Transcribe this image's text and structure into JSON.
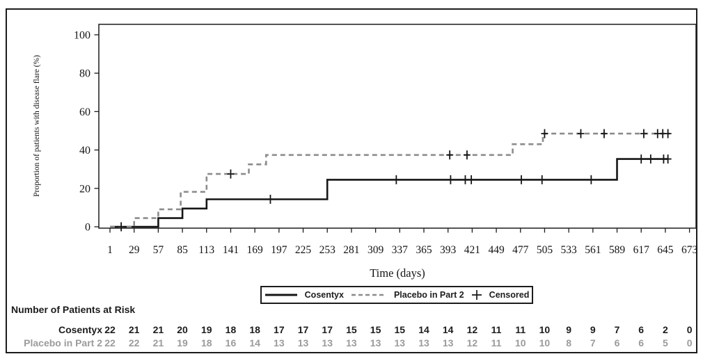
{
  "chart_data": {
    "type": "line",
    "subtype": "kaplan-meier-step",
    "title": "",
    "xlabel": "Time (days)",
    "ylabel": "Proportion of patients with disease flare (%)",
    "xlim": [
      1,
      673
    ],
    "ylim": [
      0,
      100
    ],
    "grid": false,
    "x_ticks": [
      1,
      29,
      57,
      85,
      113,
      141,
      169,
      197,
      225,
      253,
      281,
      309,
      337,
      365,
      393,
      421,
      449,
      477,
      505,
      533,
      561,
      589,
      617,
      645,
      673
    ],
    "y_ticks": [
      0,
      20,
      40,
      60,
      80,
      100
    ],
    "legend_position": "bottom-center",
    "censored_label": "Censored",
    "censored_marker": "+",
    "series": [
      {
        "name": "Cosentyx",
        "style": "solid",
        "color": "#161616",
        "steps": [
          [
            1,
            0
          ],
          [
            57,
            0
          ],
          [
            57,
            4.5
          ],
          [
            85,
            4.5
          ],
          [
            85,
            9.5
          ],
          [
            113,
            9.5
          ],
          [
            113,
            14.3
          ],
          [
            253,
            14.3
          ],
          [
            253,
            24.5
          ],
          [
            589,
            24.5
          ],
          [
            589,
            35.3
          ],
          [
            648,
            35.3
          ]
        ],
        "censored": [
          [
            14,
            0
          ],
          [
            187,
            14.3
          ],
          [
            333,
            24.5
          ],
          [
            396,
            24.5
          ],
          [
            413,
            24.5
          ],
          [
            420,
            24.5
          ],
          [
            478,
            24.5
          ],
          [
            502,
            24.5
          ],
          [
            559,
            24.5
          ],
          [
            617,
            35.3
          ],
          [
            628,
            35.3
          ],
          [
            643,
            35.3
          ],
          [
            648,
            35.3
          ]
        ]
      },
      {
        "name": "Placebo in Part 2",
        "style": "dashed",
        "color": "#8c8c8c",
        "steps": [
          [
            1,
            0
          ],
          [
            29,
            0
          ],
          [
            29,
            4.5
          ],
          [
            57,
            4.5
          ],
          [
            57,
            9.1
          ],
          [
            83,
            9.1
          ],
          [
            83,
            18.2
          ],
          [
            113,
            18.2
          ],
          [
            113,
            27.5
          ],
          [
            162,
            27.5
          ],
          [
            162,
            32.5
          ],
          [
            182,
            32.5
          ],
          [
            182,
            37.4
          ],
          [
            468,
            37.4
          ],
          [
            468,
            43
          ],
          [
            503,
            43
          ],
          [
            503,
            48.5
          ],
          [
            650,
            48.5
          ]
        ],
        "censored": [
          [
            141,
            27.5
          ],
          [
            395,
            37.4
          ],
          [
            415,
            37.4
          ],
          [
            505,
            48.5
          ],
          [
            547,
            48.5
          ],
          [
            574,
            48.5
          ],
          [
            620,
            48.5
          ],
          [
            636,
            48.5
          ],
          [
            642,
            48.5
          ],
          [
            648,
            48.5
          ]
        ]
      }
    ]
  },
  "risk_table": {
    "title": "Number of Patients at Risk",
    "days": [
      1,
      29,
      57,
      85,
      113,
      141,
      169,
      197,
      225,
      253,
      281,
      309,
      337,
      365,
      393,
      421,
      449,
      477,
      505,
      533,
      561,
      589,
      617,
      645,
      673
    ],
    "rows": [
      {
        "label": "Cosentyx",
        "color": "#1c1c1c",
        "values": [
          22,
          21,
          21,
          20,
          19,
          18,
          18,
          17,
          17,
          17,
          15,
          15,
          15,
          14,
          14,
          12,
          11,
          11,
          10,
          9,
          9,
          7,
          6,
          2,
          0
        ]
      },
      {
        "label": "Placebo in Part 2",
        "color": "#9b9b9b",
        "values": [
          22,
          22,
          21,
          19,
          18,
          16,
          14,
          13,
          13,
          13,
          13,
          13,
          13,
          13,
          13,
          12,
          11,
          10,
          10,
          8,
          7,
          6,
          6,
          5,
          0
        ]
      }
    ]
  }
}
